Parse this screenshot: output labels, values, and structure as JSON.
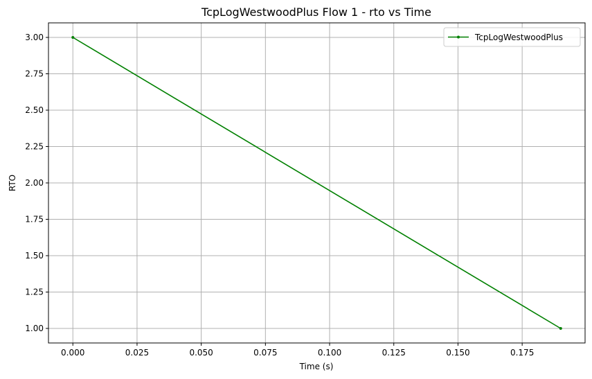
{
  "chart_data": {
    "type": "line",
    "title": "TcpLogWestwoodPlus Flow 1 - rto vs Time",
    "xlabel": "Time (s)",
    "ylabel": "RTO",
    "xlim": [
      -0.0095,
      0.1995
    ],
    "ylim": [
      0.9,
      3.1
    ],
    "x_ticks": [
      0.0,
      0.025,
      0.05,
      0.075,
      0.1,
      0.125,
      0.15,
      0.175
    ],
    "x_tick_labels": [
      "0.000",
      "0.025",
      "0.050",
      "0.075",
      "0.100",
      "0.125",
      "0.150",
      "0.175"
    ],
    "y_ticks": [
      1.0,
      1.25,
      1.5,
      1.75,
      2.0,
      2.25,
      2.5,
      2.75,
      3.0
    ],
    "y_tick_labels": [
      "1.00",
      "1.25",
      "1.50",
      "1.75",
      "2.00",
      "2.25",
      "2.50",
      "2.75",
      "3.00"
    ],
    "grid": true,
    "legend_position": "top-right",
    "series": [
      {
        "name": "TcpLogWestwoodPlus",
        "color": "#008000",
        "marker": "dot",
        "x": [
          0.0,
          0.19
        ],
        "y": [
          3.0,
          1.0
        ]
      }
    ]
  }
}
